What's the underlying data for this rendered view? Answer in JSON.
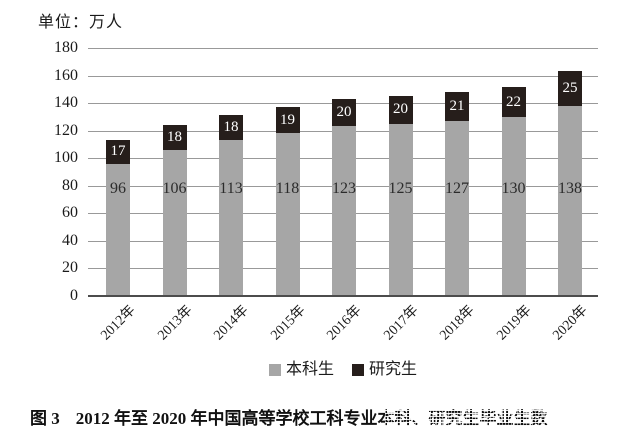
{
  "page": {
    "background": "#ffffff"
  },
  "chart_data": {
    "type": "bar",
    "stacked": true,
    "unit_label": "单位：万人",
    "categories": [
      "2012年",
      "2013年",
      "2014年",
      "2015年",
      "2016年",
      "2017年",
      "2018年",
      "2019年",
      "2020年"
    ],
    "series": [
      {
        "name": "本科生",
        "color": "#a6a6a6",
        "label_color": "#2b2b2b",
        "values": [
          96,
          106,
          113,
          118,
          123,
          125,
          127,
          130,
          138
        ]
      },
      {
        "name": "研究生",
        "color": "#261e1b",
        "label_color": "#ffffff",
        "values": [
          17,
          18,
          18,
          19,
          20,
          20,
          21,
          22,
          25
        ]
      }
    ],
    "ylim": [
      0,
      180
    ],
    "y_ticks": [
      0,
      20,
      40,
      60,
      80,
      100,
      120,
      140,
      160,
      180
    ],
    "grid": true,
    "legend_position": "bottom-center",
    "xlabel": "",
    "ylabel": ""
  },
  "caption": {
    "figure_label": "图 3",
    "text": "2012 年至 2020 年中国高等学校工科专业本科、研究生毕业生数"
  }
}
